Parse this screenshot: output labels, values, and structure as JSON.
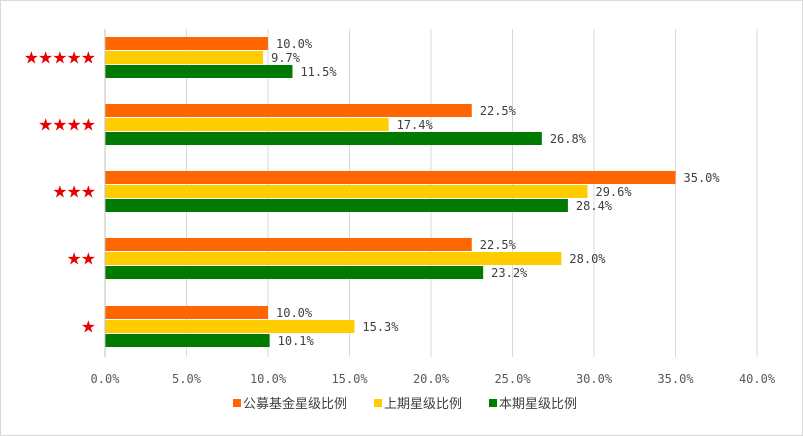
{
  "chart_data": {
    "type": "bar",
    "orientation": "horizontal",
    "title": "",
    "xlabel": "",
    "ylabel": "",
    "xlim": [
      0,
      40
    ],
    "x_ticks": [
      0,
      5,
      10,
      15,
      20,
      25,
      30,
      35,
      40
    ],
    "x_tick_labels": [
      "0.0%",
      "5.0%",
      "10.0%",
      "15.0%",
      "20.0%",
      "25.0%",
      "30.0%",
      "35.0%",
      "40.0%"
    ],
    "grid": true,
    "legend_position": "bottom",
    "categories": [
      {
        "stars": 5,
        "label": "★★★★★"
      },
      {
        "stars": 4,
        "label": "★★★★"
      },
      {
        "stars": 3,
        "label": "★★★"
      },
      {
        "stars": 2,
        "label": "★★"
      },
      {
        "stars": 1,
        "label": "★"
      }
    ],
    "series": [
      {
        "name": "公募基金星级比例",
        "color": "#ff6600",
        "values": [
          10.0,
          22.5,
          35.0,
          22.5,
          10.0
        ],
        "labels": [
          "10.0%",
          "22.5%",
          "35.0%",
          "22.5%",
          "10.0%"
        ]
      },
      {
        "name": "上期星级比例",
        "color": "#ffcc00",
        "values": [
          9.7,
          17.4,
          29.6,
          28.0,
          15.3
        ],
        "labels": [
          "9.7%",
          "17.4%",
          "29.6%",
          "28.0%",
          "15.3%"
        ]
      },
      {
        "name": "本期星级比例",
        "color": "#007a00",
        "values": [
          11.5,
          26.8,
          28.4,
          23.2,
          10.1
        ],
        "labels": [
          "11.5%",
          "26.8%",
          "28.4%",
          "23.2%",
          "10.1%"
        ]
      }
    ],
    "star_color": "#e60000",
    "grid_color": "#d9d9d9",
    "axis_color": "#bfbfbf"
  }
}
